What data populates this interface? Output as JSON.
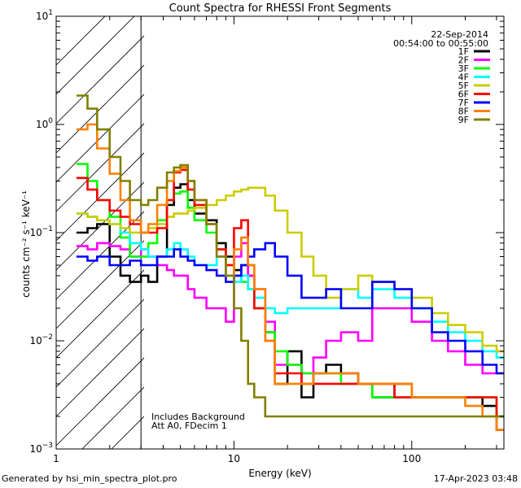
{
  "chart_data": {
    "type": "line",
    "title": "Count Spectra for RHESSI Front Segments",
    "date": "22-Sep-2014",
    "time_range": "00:54:00 to 00:55:00",
    "xlabel": "Energy (keV)",
    "ylabel": "counts cm⁻² s⁻¹ keV⁻¹",
    "x_scale": "log",
    "y_scale": "log",
    "xlim": [
      1,
      330
    ],
    "ylim": [
      0.001,
      10
    ],
    "x_ticks": [
      {
        "v": 1,
        "label": "1"
      },
      {
        "v": 10,
        "label": "10"
      },
      {
        "v": 100,
        "label": "100"
      }
    ],
    "y_ticks": [
      {
        "v": 0.001,
        "base": "10",
        "exp": "−3"
      },
      {
        "v": 0.01,
        "base": "10",
        "exp": "−2"
      },
      {
        "v": 0.1,
        "base": "10",
        "exp": "−1"
      },
      {
        "v": 1,
        "base": "10",
        "exp": "0"
      },
      {
        "v": 10,
        "base": "10",
        "exp": "1"
      }
    ],
    "hatched_region": [
      1,
      3
    ],
    "annotation_lines": [
      "Includes Background",
      "Att A0, FDecim 1"
    ],
    "series": [
      {
        "name": "1F",
        "color": "#000000",
        "x": [
          1.3,
          1.5,
          1.7,
          2.0,
          2.3,
          2.6,
          3.0,
          3.3,
          3.7,
          4.2,
          4.6,
          5.0,
          5.5,
          6.0,
          7.0,
          8.0,
          9.0,
          10.0,
          11.0,
          12.0,
          13.0,
          15.0,
          17.0,
          20.0,
          24.0,
          28.0,
          33.0,
          40.0,
          50.0,
          60.0,
          80.0,
          100.0,
          130.0,
          160.0,
          200.0,
          250.0,
          300.0
        ],
        "y": [
          0.1,
          0.11,
          0.12,
          0.06,
          0.04,
          0.035,
          0.04,
          0.035,
          0.06,
          0.18,
          0.26,
          0.28,
          0.2,
          0.15,
          0.13,
          0.08,
          0.06,
          0.045,
          0.05,
          0.04,
          0.02,
          0.012,
          0.004,
          0.008,
          0.003,
          0.005,
          0.006,
          0.005,
          0.004,
          0.003,
          0.004,
          0.003,
          0.003,
          0.003,
          0.003,
          0.0025,
          0.002
        ]
      },
      {
        "name": "2F",
        "color": "#ff00ff",
        "x": [
          1.3,
          1.5,
          1.7,
          2.0,
          2.3,
          2.6,
          3.0,
          3.3,
          3.7,
          4.2,
          4.6,
          5.0,
          5.5,
          6.0,
          7.0,
          8.0,
          9.0,
          10.0,
          11.0,
          12.0,
          13.0,
          15.0,
          17.0,
          20.0,
          24.0,
          28.0,
          33.0,
          40.0,
          50.0,
          60.0,
          80.0,
          100.0,
          130.0,
          160.0,
          200.0,
          250.0,
          300.0
        ],
        "y": [
          0.075,
          0.07,
          0.08,
          0.075,
          0.07,
          0.06,
          0.07,
          0.06,
          0.05,
          0.045,
          0.04,
          0.04,
          0.03,
          0.025,
          0.02,
          0.02,
          0.015,
          0.06,
          0.08,
          0.04,
          0.03,
          0.015,
          0.006,
          0.006,
          0.005,
          0.007,
          0.01,
          0.012,
          0.01,
          0.02,
          0.02,
          0.015,
          0.01,
          0.008,
          0.006,
          0.005,
          0.005
        ]
      },
      {
        "name": "3F",
        "color": "#00ff00",
        "x": [
          1.3,
          1.5,
          1.7,
          2.0,
          2.3,
          2.6,
          3.0,
          3.3,
          3.7,
          4.2,
          4.6,
          5.0,
          5.5,
          6.0,
          7.0,
          8.0,
          9.0,
          10.0,
          11.0,
          12.0,
          13.0,
          15.0,
          17.0,
          20.0,
          24.0,
          28.0,
          33.0,
          40.0,
          50.0,
          60.0,
          80.0,
          100.0,
          130.0,
          160.0,
          200.0,
          250.0,
          300.0
        ],
        "y": [
          0.43,
          0.3,
          0.2,
          0.14,
          0.09,
          0.06,
          0.06,
          0.08,
          0.13,
          0.2,
          0.23,
          0.24,
          0.17,
          0.13,
          0.1,
          0.07,
          0.05,
          0.04,
          0.035,
          0.03,
          0.02,
          0.012,
          0.008,
          0.006,
          0.005,
          0.005,
          0.005,
          0.004,
          0.004,
          0.003,
          0.003,
          0.003,
          0.003,
          0.003,
          0.003,
          0.003,
          0.002
        ]
      },
      {
        "name": "4F",
        "color": "#00ffff",
        "x": [
          1.3,
          1.5,
          1.7,
          2.0,
          2.3,
          2.6,
          3.0,
          3.3,
          3.7,
          4.2,
          4.6,
          5.0,
          5.5,
          6.0,
          7.0,
          8.0,
          9.0,
          10.0,
          11.0,
          12.0,
          13.0,
          15.0,
          17.0,
          20.0,
          24.0,
          28.0,
          33.0,
          40.0,
          50.0,
          60.0,
          80.0,
          100.0,
          130.0,
          160.0,
          200.0,
          250.0,
          300.0
        ],
        "y": [
          0.15,
          0.14,
          0.13,
          0.12,
          0.1,
          0.08,
          0.07,
          0.06,
          0.06,
          0.07,
          0.08,
          0.07,
          0.06,
          0.05,
          0.05,
          0.06,
          0.04,
          0.035,
          0.04,
          0.03,
          0.025,
          0.02,
          0.018,
          0.02,
          0.02,
          0.02,
          0.02,
          0.03,
          0.025,
          0.03,
          0.025,
          0.02,
          0.015,
          0.012,
          0.01,
          0.008,
          0.007
        ]
      },
      {
        "name": "5F",
        "color": "#cccc00",
        "x": [
          1.3,
          1.5,
          1.7,
          2.0,
          2.3,
          2.6,
          3.0,
          3.3,
          3.7,
          4.2,
          4.6,
          5.0,
          5.5,
          6.0,
          7.0,
          8.0,
          9.0,
          10.0,
          11.0,
          12.0,
          13.0,
          15.0,
          17.0,
          20.0,
          24.0,
          28.0,
          33.0,
          40.0,
          50.0,
          60.0,
          80.0,
          100.0,
          130.0,
          160.0,
          200.0,
          250.0,
          300.0
        ],
        "y": [
          0.15,
          0.14,
          0.13,
          0.12,
          0.11,
          0.1,
          0.1,
          0.11,
          0.12,
          0.14,
          0.15,
          0.15,
          0.16,
          0.17,
          0.18,
          0.2,
          0.22,
          0.24,
          0.25,
          0.26,
          0.26,
          0.22,
          0.16,
          0.1,
          0.06,
          0.04,
          0.025,
          0.03,
          0.04,
          0.035,
          0.03,
          0.025,
          0.018,
          0.014,
          0.012,
          0.009,
          0.008
        ]
      },
      {
        "name": "6F",
        "color": "#ff0000",
        "x": [
          1.3,
          1.5,
          1.7,
          2.0,
          2.3,
          2.6,
          3.0,
          3.3,
          3.7,
          4.2,
          4.6,
          5.0,
          5.5,
          6.0,
          7.0,
          8.0,
          9.0,
          10.0,
          11.0,
          12.0,
          13.0,
          15.0,
          17.0,
          20.0,
          24.0,
          28.0,
          33.0,
          40.0,
          50.0,
          60.0,
          80.0,
          100.0,
          130.0,
          160.0,
          200.0,
          250.0,
          300.0
        ],
        "y": [
          0.32,
          0.25,
          0.2,
          0.16,
          0.14,
          0.12,
          0.1,
          0.1,
          0.11,
          0.2,
          0.36,
          0.38,
          0.25,
          0.18,
          0.12,
          0.07,
          0.05,
          0.11,
          0.13,
          0.05,
          0.02,
          0.01,
          0.005,
          0.005,
          0.004,
          0.004,
          0.004,
          0.004,
          0.004,
          0.004,
          0.003,
          0.003,
          0.003,
          0.003,
          0.003,
          0.003,
          0.0015
        ]
      },
      {
        "name": "7F",
        "color": "#0000ff",
        "x": [
          1.3,
          1.5,
          1.7,
          2.0,
          2.3,
          2.6,
          3.0,
          3.3,
          3.7,
          4.2,
          4.6,
          5.0,
          5.5,
          6.0,
          7.0,
          8.0,
          9.0,
          10.0,
          11.0,
          12.0,
          13.0,
          15.0,
          17.0,
          20.0,
          24.0,
          28.0,
          33.0,
          40.0,
          50.0,
          60.0,
          80.0,
          100.0,
          130.0,
          160.0,
          200.0,
          250.0,
          300.0
        ],
        "y": [
          0.06,
          0.055,
          0.06,
          0.05,
          0.05,
          0.055,
          0.05,
          0.05,
          0.06,
          0.06,
          0.07,
          0.06,
          0.055,
          0.05,
          0.045,
          0.04,
          0.035,
          0.04,
          0.05,
          0.06,
          0.07,
          0.08,
          0.06,
          0.04,
          0.025,
          0.025,
          0.03,
          0.02,
          0.02,
          0.035,
          0.03,
          0.02,
          0.012,
          0.01,
          0.008,
          0.006,
          0.005
        ]
      },
      {
        "name": "8F",
        "color": "#ff8000",
        "x": [
          1.3,
          1.5,
          1.7,
          2.0,
          2.3,
          2.6,
          3.0,
          3.3,
          3.7,
          4.2,
          4.6,
          5.0,
          5.5,
          6.0,
          7.0,
          8.0,
          9.0,
          10.0,
          11.0,
          12.0,
          13.0,
          15.0,
          17.0,
          20.0,
          24.0,
          28.0,
          33.0,
          40.0,
          50.0,
          60.0,
          80.0,
          100.0,
          130.0,
          160.0,
          200.0,
          250.0,
          300.0
        ],
        "y": [
          0.9,
          1.0,
          0.6,
          0.35,
          0.2,
          0.13,
          0.1,
          0.12,
          0.18,
          0.3,
          0.37,
          0.4,
          0.3,
          0.2,
          0.12,
          0.06,
          0.04,
          0.07,
          0.09,
          0.05,
          0.03,
          0.01,
          0.004,
          0.004,
          0.004,
          0.005,
          0.005,
          0.005,
          0.004,
          0.004,
          0.004,
          0.003,
          0.003,
          0.003,
          0.0025,
          0.002,
          0.0015
        ]
      },
      {
        "name": "9F",
        "color": "#808000",
        "x": [
          1.3,
          1.5,
          1.7,
          2.0,
          2.3,
          2.6,
          3.0,
          3.3,
          3.7,
          4.2,
          4.6,
          5.0,
          5.5,
          6.0,
          7.0,
          8.0,
          9.0,
          10.0,
          11.0,
          12.0,
          13.0,
          15.0,
          17.0,
          20.0,
          24.0,
          28.0,
          33.0,
          40.0,
          50.0,
          60.0,
          80.0,
          100.0,
          130.0,
          160.0,
          200.0,
          250.0,
          300.0
        ],
        "y": [
          1.85,
          1.4,
          0.9,
          0.5,
          0.3,
          0.2,
          0.18,
          0.2,
          0.26,
          0.36,
          0.4,
          0.42,
          0.3,
          0.2,
          0.12,
          0.06,
          0.04,
          0.02,
          0.01,
          0.004,
          0.003,
          0.002,
          0.002,
          0.002,
          0.002,
          0.002,
          0.002,
          0.002,
          0.002,
          0.002,
          0.002,
          0.002,
          0.002,
          0.002,
          0.002,
          0.002,
          0.002
        ]
      }
    ]
  },
  "footer": {
    "generated_by": "Generated by hsi_min_spectra_plot.pro",
    "timestamp": "17-Apr-2023 03:48"
  }
}
